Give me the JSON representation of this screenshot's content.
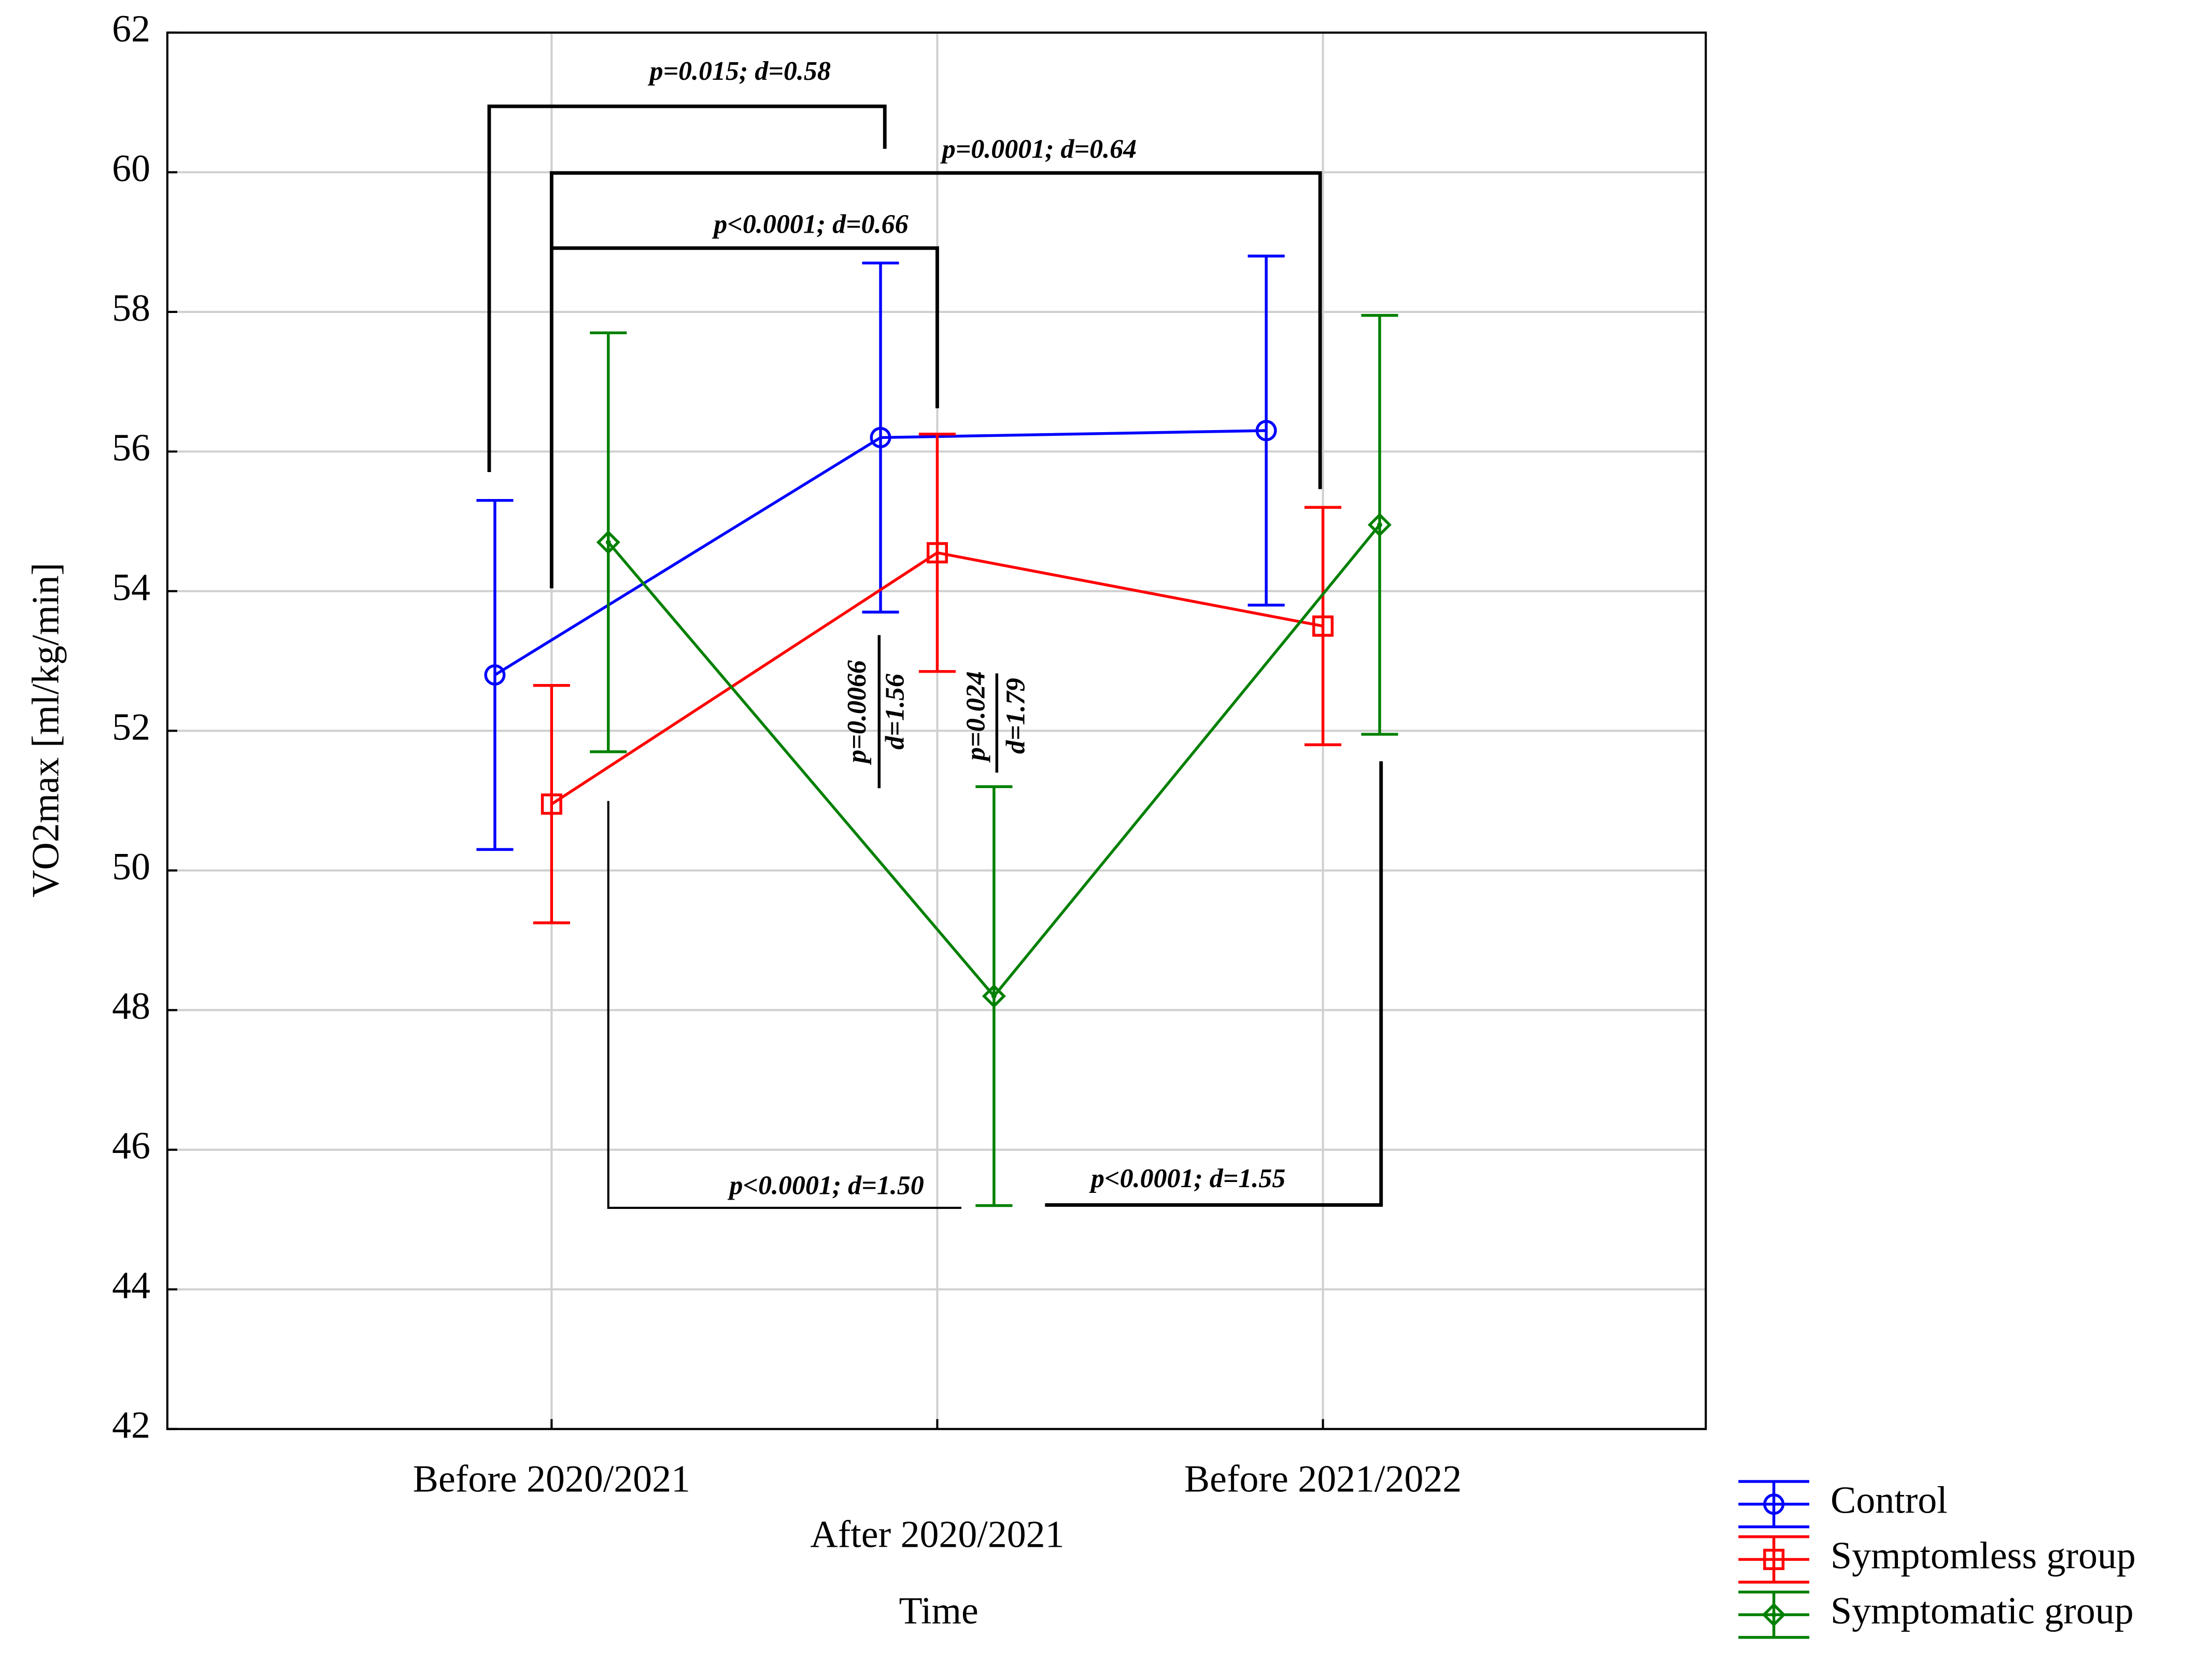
{
  "chart_data": {
    "type": "line",
    "x_label": "Time",
    "y_label": "VO2max [ml/kg/min]",
    "categories": [
      "Before 2020/2021",
      "After 2020/2021",
      "Before 2021/2022"
    ],
    "ylim": [
      42,
      62
    ],
    "yticks": [
      42,
      44,
      46,
      48,
      50,
      52,
      54,
      56,
      58,
      60,
      62
    ],
    "grid": true,
    "legend": "bottom-right",
    "series": [
      {
        "name": "Control",
        "color": "#0000ff",
        "values": [
          52.8,
          56.2,
          56.3
        ],
        "errors": [
          2.5,
          2.5,
          2.5
        ]
      },
      {
        "name": "Symptomless group",
        "color": "#ff0000",
        "values": [
          50.95,
          54.55,
          53.5
        ],
        "errors": [
          1.7,
          1.7,
          1.7
        ]
      },
      {
        "name": "Symptomatic group",
        "color": "#008000",
        "values": [
          54.7,
          48.2,
          54.95
        ],
        "errors": [
          3.0,
          3.0,
          3.0
        ]
      }
    ],
    "annotations": [
      "p=0.015; d=0.58",
      "p=0.0001; d=0.64",
      "p<0.0001; d=0.66",
      "p=0.0066",
      "d=1.56",
      "p=0.024",
      "d=1.79",
      "p<0.0001; d=1.50",
      "p<0.0001; d=1.55"
    ]
  }
}
